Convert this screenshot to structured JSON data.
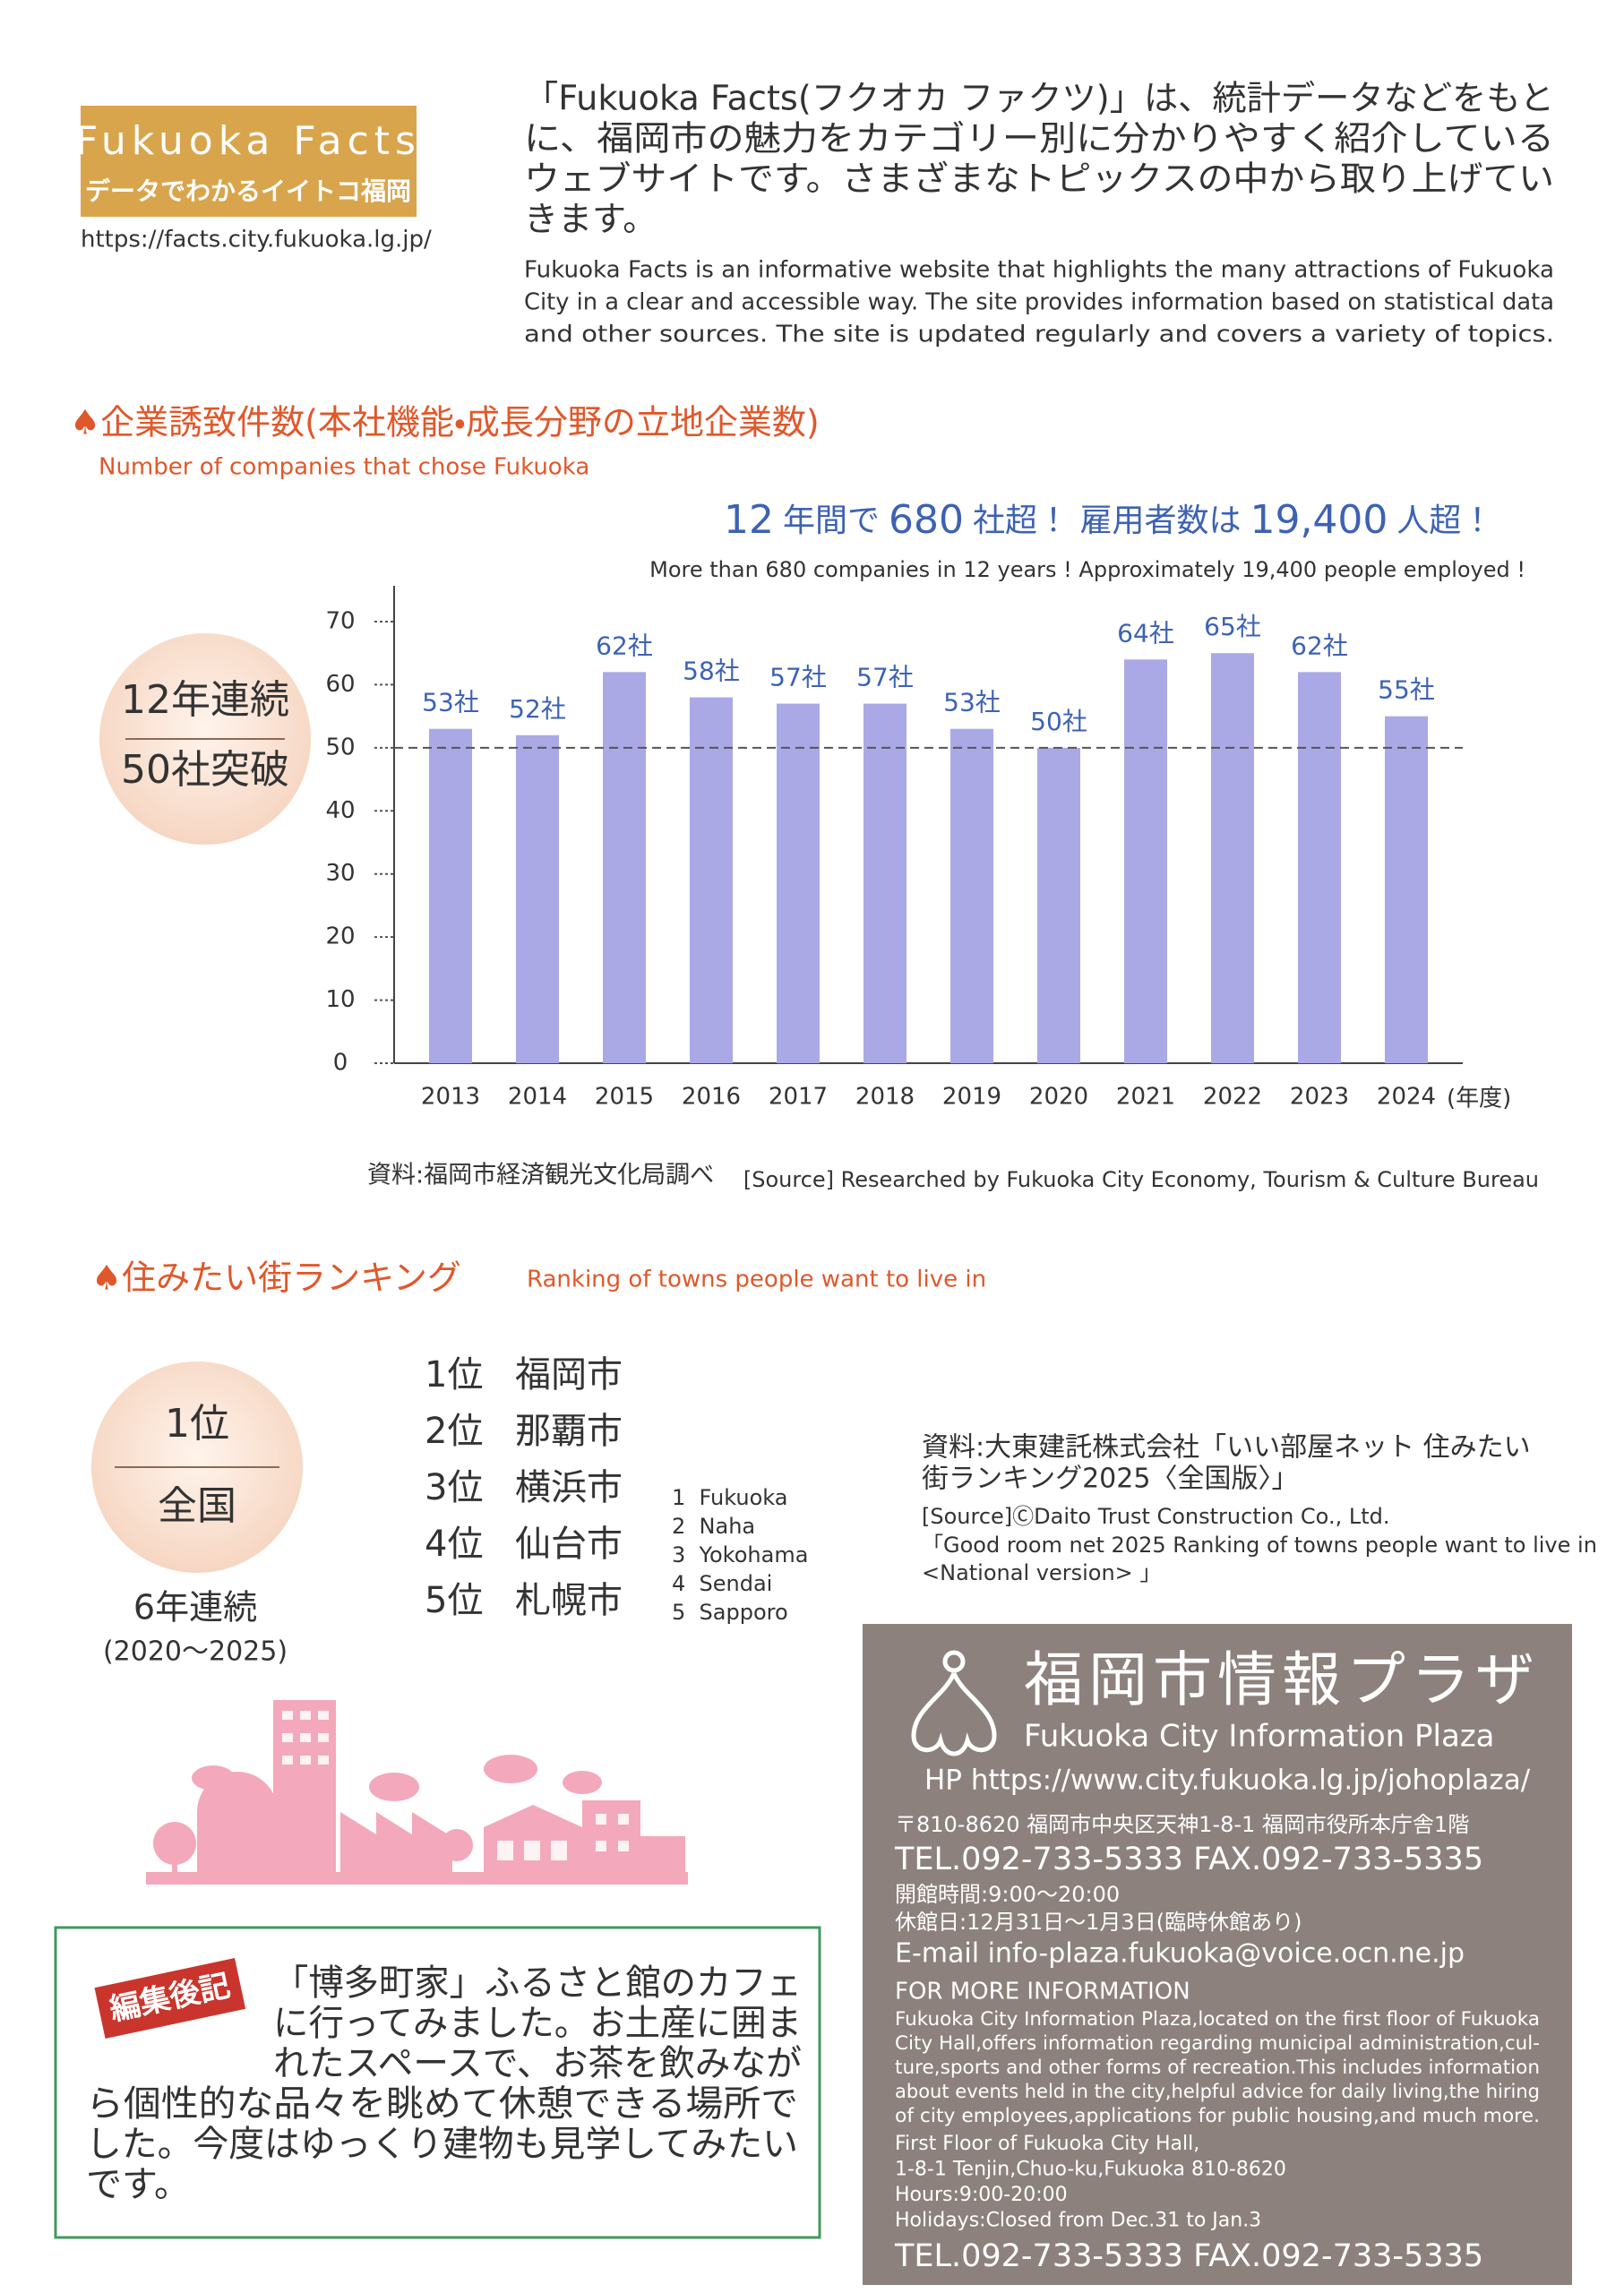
{
  "header": {
    "logo_title": "Fukuoka Facts",
    "logo_subtitle": "データでわかるイイトコ福岡",
    "url": "https://facts.city.fukuoka.lg.jp/",
    "intro_ja": [
      "「Fukuoka Facts(フクオカ ファクツ)」は、統計データなどをもと",
      "に、福岡市の魅力をカテゴリー別に分かりやすく紹介している",
      "ウェブサイトです。さまざまなトピックスの中から取り上げてい",
      "きます。"
    ],
    "intro_en": [
      "Fukuoka Facts is an informative website that highlights the many attractions of Fukuoka",
      "City in a clear and accessible way. The site provides information based on statistical data",
      "and other sources. The site is updated regularly and covers a variety of topics."
    ]
  },
  "section1": {
    "headline": [
      "12",
      "年間で",
      "680",
      "社超！ 雇用者数は",
      "19,400",
      "人超！"
    ],
    "headline_note": "More than 680 companies in 12 years ! Approximately 19,400 people employed !",
    "badge": [
      "12年連続",
      "50社突破"
    ],
    "source_ja": "資料:福岡市経済観光文化局調べ",
    "source_en": "[Source] Researched by Fukuoka City Economy, Tourism & Culture Bureau"
  },
  "chart_data": {
    "type": "bar",
    "title": "♠企業誘致件数(本社機能・成長分野の立地企業数)",
    "subtitle": "Number of companies that chose Fukuoka",
    "x_label": "(年度)",
    "categories": [
      "2013",
      "2014",
      "2015",
      "2016",
      "2017",
      "2018",
      "2019",
      "2020",
      "2021",
      "2022",
      "2023",
      "2024"
    ],
    "values": [
      53,
      52,
      62,
      58,
      57,
      57,
      53,
      50,
      64,
      65,
      62,
      55
    ],
    "value_labels": [
      "53社",
      "52社",
      "62社",
      "58社",
      "57社",
      "57社",
      "53社",
      "50社",
      "64社",
      "65社",
      "62社",
      "55社"
    ],
    "color": "#aaa9e6",
    "label_color": "#3d62b3",
    "ylim": [
      0,
      70
    ],
    "yticks": [
      0,
      10,
      20,
      30,
      40,
      50,
      60,
      70
    ],
    "reference_line": 50
  },
  "ranking": {
    "title": "♠住みたい街ランキング",
    "subtitle": "Ranking of towns people want to live in",
    "badge": [
      "1位",
      "全国"
    ],
    "streak": "6年連続",
    "period": "(2020〜2025)",
    "items": [
      [
        "1位",
        "福岡市"
      ],
      [
        "2位",
        "那覇市"
      ],
      [
        "3位",
        "横浜市"
      ],
      [
        "4位",
        "仙台市"
      ],
      [
        "5位",
        "札幌市"
      ]
    ],
    "items_en": [
      "1  Fukuoka",
      "2  Naha",
      "3  Yokohama",
      "4  Sendai",
      "5  Sapporo"
    ],
    "source": [
      "資料:大東建託株式会社「いい部屋ネット 住みたい",
      "街ランキング2025〈全国版〉」",
      "[Source]ⒸDaito Trust Construction Co., Ltd.",
      "「Good room net 2025 Ranking of towns people want to live in",
      "<National version> 」"
    ]
  },
  "plaza": {
    "title": "福岡市情報プラザ",
    "title_en": "Fukuoka City Information Plaza",
    "hp": "HP https://www.city.fukuoka.lg.jp/johoplaza/",
    "address": "〒810-8620 福岡市中央区天神1-8-1 福岡市役所本庁舎1階",
    "tel": "TEL.092-733-5333 FAX.092-733-5335",
    "hours": "開館時間:9:00〜20:00",
    "closed": "休館日:12月31日〜1月3日(臨時休館あり)",
    "email": "E-mail info-plaza.fukuoka@voice.ocn.ne.jp",
    "more": "FOR MORE INFORMATION",
    "description": [
      "Fukuoka City Information Plaza,located on the first floor of Fukuoka",
      "City Hall,offers information regarding municipal administration,cul-",
      "ture,sports and other forms of recreation.This includes information",
      "about events held in the city,helpful advice for daily living,the hiring",
      "of city employees,applications for public housing,and much more."
    ],
    "address_en": [
      "First Floor of Fukuoka City Hall,",
      "1-8-1 Tenjin,Chuo-ku,Fukuoka 810-8620",
      "Hours:9:00-20:00",
      "Holidays:Closed from Dec.31 to Jan.3"
    ],
    "tel_en": "TEL.092-733-5333 FAX.092-733-5335"
  },
  "editor": {
    "stamp": "編集後記",
    "lines": [
      "「博多町家」ふるさと館のカフェ",
      "に行ってみました。お土産に囲ま",
      "れたスペースで、お茶を飲みなが",
      "ら個性的な品々を眺めて休憩できる場所で",
      "した。今度はゆっくり建物も見学してみたい",
      "です。"
    ]
  }
}
